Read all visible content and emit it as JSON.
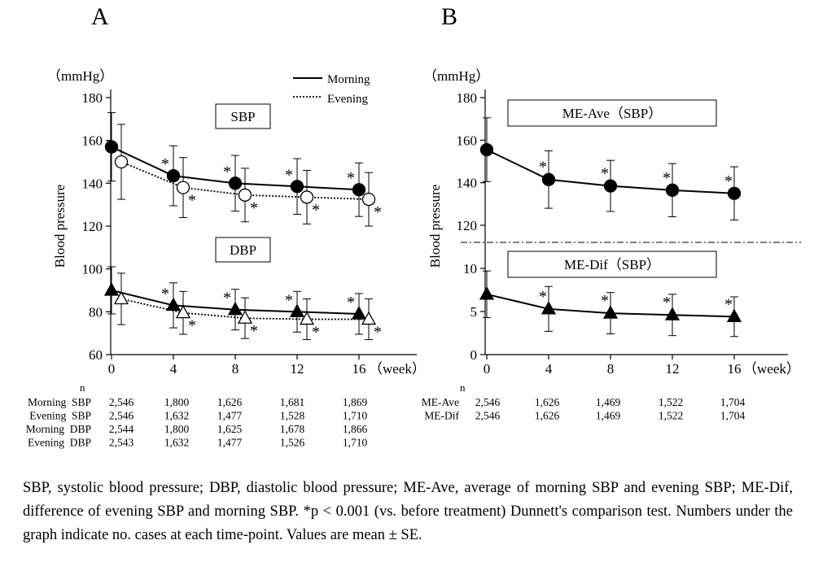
{
  "caption": "SBP, systolic blood pressure; DBP, diastolic blood pressure; ME-Ave, average of morning SBP and evening SBP; ME-Dif, difference of evening SBP and morning SBP. *p < 0.001 (vs. before treatment) Dunnett's comparison test. Numbers under the graph indicate no. cases at each time-point. Values are mean ± SE.",
  "chart_data": [
    {
      "panel_label": "A",
      "type": "line",
      "ylabel": "Blood pressure",
      "yunit": "（mmHg）",
      "xunit": "（week）",
      "ylim": [
        60,
        180
      ],
      "yticks": [
        60,
        80,
        100,
        120,
        140,
        160,
        180
      ],
      "x": [
        0,
        4,
        8,
        12,
        16
      ],
      "legend": {
        "position": "top-right",
        "morning": "Morning",
        "evening": "Evening"
      },
      "boxes": {
        "upper": "SBP",
        "lower": "DBP"
      },
      "series": [
        {
          "name": "Morning SBP",
          "line": "solid",
          "marker": "filled-circle",
          "values": [
            157,
            143.5,
            140,
            138.5,
            137
          ],
          "err": [
            16,
            14,
            13,
            13,
            12.5
          ],
          "sig": [
            false,
            true,
            true,
            true,
            true
          ]
        },
        {
          "name": "Evening SBP",
          "line": "dotted",
          "marker": "open-circle",
          "values": [
            150,
            138,
            134.5,
            133.5,
            132.5
          ],
          "err": [
            17.5,
            14,
            12.5,
            12.5,
            12.5
          ],
          "sig": [
            false,
            true,
            true,
            true,
            true
          ]
        },
        {
          "name": "Morning DBP",
          "line": "solid",
          "marker": "filled-triangle",
          "values": [
            90,
            83,
            81,
            80,
            79
          ],
          "err": [
            11,
            10.5,
            9.5,
            9.5,
            9.5
          ],
          "sig": [
            false,
            true,
            true,
            true,
            true
          ]
        },
        {
          "name": "Evening DBP",
          "line": "dotted",
          "marker": "open-triangle",
          "values": [
            86,
            79.5,
            77,
            76.5,
            76.5
          ],
          "err": [
            12,
            10,
            9.5,
            9.5,
            9.5
          ],
          "sig": [
            false,
            true,
            true,
            true,
            true
          ]
        }
      ],
      "sig_marker": "*",
      "n_table": {
        "header": "n",
        "rows": [
          {
            "label": "Morning  SBP",
            "values": [
              "2,546",
              "1,800",
              "1,626",
              "1,681",
              "1,869"
            ]
          },
          {
            "label": "Evening  SBP",
            "values": [
              "2,546",
              "1,632",
              "1,477",
              "1,528",
              "1,710"
            ]
          },
          {
            "label": "Morning  DBP",
            "values": [
              "2,544",
              "1,800",
              "1,625",
              "1,678",
              "1,866"
            ]
          },
          {
            "label": "Evening  DBP",
            "values": [
              "2,543",
              "1,632",
              "1,477",
              "1,526",
              "1,710"
            ]
          }
        ]
      }
    },
    {
      "panel_label": "B",
      "type": "line",
      "ylabel": "Blood pressure",
      "yunit": "（mmHg）",
      "xunit": "（week）",
      "x": [
        0,
        4,
        8,
        12,
        16
      ],
      "upper": {
        "title": "ME-Ave（SBP）",
        "ylim": [
          120,
          180
        ],
        "yticks": [
          120,
          140,
          160,
          180
        ],
        "marker": "filled-circle",
        "values": [
          155.5,
          141.5,
          138.5,
          136.5,
          135
        ],
        "err": [
          15,
          13.5,
          12,
          12.5,
          12.5
        ],
        "sig": [
          false,
          true,
          true,
          true,
          true
        ]
      },
      "lower": {
        "title": "ME-Dif（SBP）",
        "ylim": [
          0,
          10
        ],
        "yticks": [
          0,
          5,
          10
        ],
        "marker": "filled-triangle",
        "values": [
          7,
          5.3,
          4.8,
          4.6,
          4.4
        ],
        "err": [
          2.7,
          2.6,
          2.4,
          2.4,
          2.3
        ],
        "sig": [
          false,
          true,
          true,
          true,
          true
        ]
      },
      "sig_marker": "*",
      "n_table": {
        "header": "n",
        "rows": [
          {
            "label": "ME-Ave",
            "values": [
              "2,546",
              "1,626",
              "1,469",
              "1,522",
              "1,704"
            ]
          },
          {
            "label": "ME-Dif",
            "values": [
              "2,546",
              "1,626",
              "1,469",
              "1,522",
              "1,704"
            ]
          }
        ]
      }
    }
  ]
}
